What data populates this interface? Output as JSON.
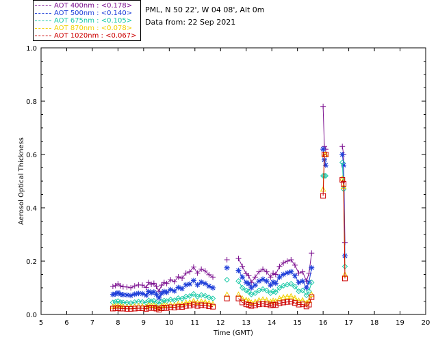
{
  "legend": [
    {
      "label": "AOT  400nm : <0.178>",
      "color": "#7b0f8f"
    },
    {
      "label": "AOT  500nm : <0.140>",
      "color": "#1f3fd9"
    },
    {
      "label": "AOT  675nm : <0.105>",
      "color": "#19c9a6"
    },
    {
      "label": "AOT  870nm : <0.078>",
      "color": "#f2d000"
    },
    {
      "label": "AOT 1020nm : <0.067>",
      "color": "#cc0000"
    }
  ],
  "info": {
    "site": "PML, N 50 22', W 04 08', Alt 0m",
    "date": "Data from: 22 Sep 2021"
  },
  "chart_data": {
    "type": "scatter",
    "xlabel": "Time (GMT)",
    "ylabel": "Aerosol Optical Thickness",
    "xlim": [
      5,
      20
    ],
    "ylim": [
      0,
      1.0
    ],
    "xticks": [
      5,
      6,
      7,
      8,
      9,
      10,
      11,
      12,
      13,
      14,
      15,
      16,
      17,
      18,
      19,
      20
    ],
    "yticks": [
      0.0,
      0.2,
      0.4,
      0.6,
      0.8,
      1.0
    ],
    "ytick_labels": [
      "0.0",
      "0.2",
      "0.4",
      "0.6",
      "0.8",
      "1.0"
    ],
    "x": [
      7.8,
      7.9,
      8.0,
      8.1,
      8.2,
      8.35,
      8.5,
      8.65,
      8.8,
      8.95,
      9.1,
      9.2,
      9.3,
      9.4,
      9.5,
      9.6,
      9.7,
      9.8,
      9.9,
      10.05,
      10.2,
      10.35,
      10.5,
      10.65,
      10.8,
      10.95,
      11.1,
      11.25,
      11.4,
      11.55,
      11.7,
      12.25,
      12.7,
      12.85,
      13.0,
      13.1,
      13.2,
      13.35,
      13.5,
      13.65,
      13.8,
      13.95,
      14.05,
      14.15,
      14.3,
      14.45,
      14.6,
      14.75,
      14.9,
      15.05,
      15.2,
      15.35,
      15.45,
      15.55,
      16.0,
      16.05,
      16.1,
      16.75,
      16.8,
      16.85
    ],
    "series": [
      {
        "name": "AOT  400nm",
        "marker": "plus",
        "values": [
          0.105,
          0.108,
          0.115,
          0.107,
          0.104,
          0.103,
          0.1,
          0.107,
          0.111,
          0.11,
          0.101,
          0.12,
          0.113,
          0.117,
          0.105,
          0.087,
          0.11,
          0.12,
          0.116,
          0.13,
          0.123,
          0.141,
          0.136,
          0.155,
          0.16,
          0.178,
          0.155,
          0.17,
          0.163,
          0.149,
          0.14,
          0.205,
          0.21,
          0.18,
          0.153,
          0.145,
          0.12,
          0.14,
          0.16,
          0.17,
          0.16,
          0.14,
          0.155,
          0.15,
          0.18,
          0.193,
          0.2,
          0.205,
          0.185,
          0.155,
          0.16,
          0.125,
          0.155,
          0.23,
          0.78,
          0.63,
          0.62,
          0.63,
          0.6,
          0.27
        ]
      },
      {
        "name": "AOT  500nm",
        "marker": "asterisk",
        "values": [
          0.075,
          0.077,
          0.082,
          0.076,
          0.074,
          0.073,
          0.071,
          0.076,
          0.079,
          0.078,
          0.072,
          0.086,
          0.081,
          0.084,
          0.075,
          0.062,
          0.079,
          0.086,
          0.083,
          0.093,
          0.088,
          0.101,
          0.097,
          0.111,
          0.114,
          0.127,
          0.111,
          0.121,
          0.116,
          0.106,
          0.1,
          0.175,
          0.165,
          0.14,
          0.12,
          0.115,
          0.1,
          0.11,
          0.125,
          0.132,
          0.125,
          0.11,
          0.121,
          0.117,
          0.14,
          0.15,
          0.156,
          0.16,
          0.145,
          0.12,
          0.125,
          0.1,
          0.121,
          0.175,
          0.62,
          0.58,
          0.56,
          0.6,
          0.56,
          0.22
        ]
      },
      {
        "name": "AOT  675nm",
        "marker": "diamond",
        "values": [
          0.045,
          0.047,
          0.05,
          0.046,
          0.045,
          0.044,
          0.043,
          0.046,
          0.048,
          0.047,
          0.044,
          0.052,
          0.049,
          0.051,
          0.045,
          0.038,
          0.048,
          0.052,
          0.05,
          0.056,
          0.053,
          0.061,
          0.059,
          0.067,
          0.069,
          0.077,
          0.067,
          0.073,
          0.07,
          0.064,
          0.06,
          0.13,
          0.125,
          0.1,
          0.09,
          0.085,
          0.075,
          0.08,
          0.09,
          0.095,
          0.09,
          0.08,
          0.087,
          0.084,
          0.1,
          0.108,
          0.112,
          0.115,
          0.104,
          0.087,
          0.09,
          0.072,
          0.087,
          0.12,
          0.52,
          0.52,
          0.52,
          0.57,
          0.47,
          0.18
        ]
      },
      {
        "name": "AOT  870nm",
        "marker": "triangle",
        "values": [
          0.03,
          0.031,
          0.033,
          0.031,
          0.03,
          0.029,
          0.029,
          0.031,
          0.032,
          0.031,
          0.029,
          0.035,
          0.033,
          0.034,
          0.03,
          0.025,
          0.032,
          0.035,
          0.033,
          0.037,
          0.035,
          0.041,
          0.039,
          0.045,
          0.046,
          0.051,
          0.045,
          0.049,
          0.047,
          0.043,
          0.04,
          0.075,
          0.075,
          0.06,
          0.055,
          0.052,
          0.045,
          0.048,
          0.054,
          0.057,
          0.054,
          0.048,
          0.052,
          0.05,
          0.06,
          0.065,
          0.067,
          0.069,
          0.062,
          0.052,
          0.054,
          0.043,
          0.052,
          0.075,
          0.47,
          0.6,
          0.6,
          0.51,
          0.48,
          0.15
        ]
      },
      {
        "name": "AOT 1020nm",
        "marker": "square",
        "values": [
          0.022,
          0.023,
          0.024,
          0.022,
          0.022,
          0.021,
          0.021,
          0.022,
          0.023,
          0.023,
          0.021,
          0.025,
          0.024,
          0.025,
          0.022,
          0.018,
          0.023,
          0.025,
          0.024,
          0.027,
          0.026,
          0.029,
          0.028,
          0.032,
          0.033,
          0.037,
          0.032,
          0.035,
          0.034,
          0.031,
          0.029,
          0.06,
          0.06,
          0.045,
          0.038,
          0.036,
          0.032,
          0.034,
          0.038,
          0.04,
          0.038,
          0.034,
          0.037,
          0.035,
          0.042,
          0.045,
          0.047,
          0.048,
          0.043,
          0.037,
          0.038,
          0.03,
          0.037,
          0.065,
          0.445,
          0.6,
          0.6,
          0.505,
          0.49,
          0.135
        ]
      }
    ]
  }
}
